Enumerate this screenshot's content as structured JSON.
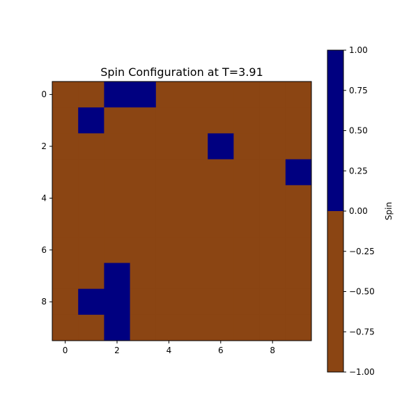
{
  "chart_data": {
    "type": "heatmap",
    "title": "Spin Configuration at T=3.91",
    "xlabel": "",
    "ylabel": "",
    "rows": 10,
    "cols": 10,
    "x_ticks": [
      0,
      2,
      4,
      6,
      8
    ],
    "y_ticks": [
      0,
      2,
      4,
      6,
      8
    ],
    "x_tick_labels": [
      "0",
      "2",
      "4",
      "6",
      "8"
    ],
    "y_tick_labels": [
      "0",
      "2",
      "4",
      "6",
      "8"
    ],
    "xlim": [
      -0.5,
      9.5
    ],
    "ylim": [
      9.5,
      -0.5
    ],
    "grid": false,
    "values": [
      [
        -1,
        -1,
        1,
        1,
        -1,
        -1,
        -1,
        -1,
        -1,
        -1
      ],
      [
        -1,
        1,
        -1,
        -1,
        -1,
        -1,
        -1,
        -1,
        -1,
        -1
      ],
      [
        -1,
        -1,
        -1,
        -1,
        -1,
        -1,
        1,
        -1,
        -1,
        -1
      ],
      [
        -1,
        -1,
        -1,
        -1,
        -1,
        -1,
        -1,
        -1,
        -1,
        1
      ],
      [
        -1,
        -1,
        -1,
        -1,
        -1,
        -1,
        -1,
        -1,
        -1,
        -1
      ],
      [
        -1,
        -1,
        -1,
        -1,
        -1,
        -1,
        -1,
        -1,
        -1,
        -1
      ],
      [
        -1,
        -1,
        -1,
        -1,
        -1,
        -1,
        -1,
        -1,
        -1,
        -1
      ],
      [
        -1,
        -1,
        1,
        -1,
        -1,
        -1,
        -1,
        -1,
        -1,
        -1
      ],
      [
        -1,
        1,
        1,
        -1,
        -1,
        -1,
        -1,
        -1,
        -1,
        -1
      ],
      [
        -1,
        -1,
        1,
        -1,
        -1,
        -1,
        -1,
        -1,
        -1,
        -1
      ]
    ],
    "colormap": {
      "negative": "#8b4513",
      "positive": "#000080",
      "threshold": 0.0
    },
    "colorbar": {
      "label": "Spin",
      "range": [
        -1.0,
        1.0
      ],
      "ticks": [
        1.0,
        0.75,
        0.5,
        0.25,
        0.0,
        -0.25,
        -0.5,
        -0.75,
        -1.0
      ],
      "tick_labels": [
        "1.00",
        "0.75",
        "0.50",
        "0.25",
        "0.00",
        "−0.25",
        "−0.50",
        "−0.75",
        "−1.00"
      ],
      "placement": "right"
    }
  }
}
